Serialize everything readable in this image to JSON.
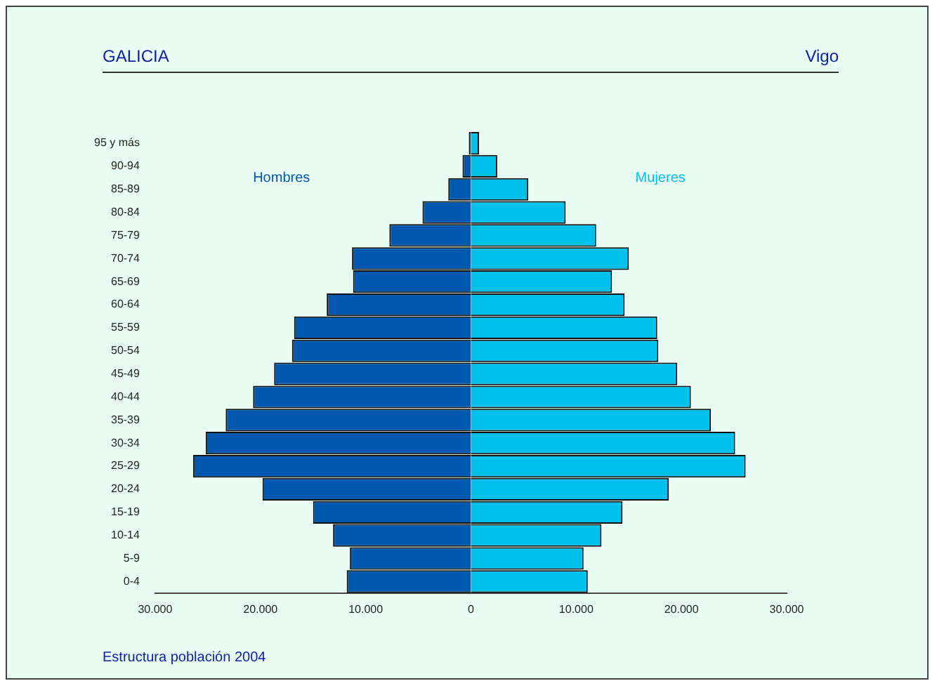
{
  "chart_data": {
    "type": "bar",
    "orientation": "horizontal",
    "stacked": true,
    "title": "GALICIA",
    "subtitle": "Vigo",
    "annotations": [
      "Estructura población 2004"
    ],
    "categories": [
      "95 y más",
      "90-94",
      "85-89",
      "80-84",
      "75-79",
      "70-74",
      "65-69",
      "60-64",
      "55-59",
      "50-54",
      "45-49",
      "40-44",
      "35-39",
      "30-34",
      "25-29",
      "20-24",
      "15-19",
      "10-14",
      "5-9",
      "0-4"
    ],
    "series": [
      {
        "name": "Hombres",
        "color": "#0058b0",
        "values": [
          -200,
          -800,
          -2150,
          -4600,
          -7750,
          -11300,
          -11200,
          -13700,
          -16800,
          -17000,
          -18700,
          -20700,
          -23300,
          -25200,
          -26400,
          -19800,
          -15000,
          -13100,
          -11500,
          -11800
        ]
      },
      {
        "name": "Mujeres",
        "color": "#00c0ec",
        "values": [
          770,
          2500,
          5450,
          9000,
          11900,
          15000,
          13400,
          14600,
          17700,
          17800,
          19600,
          20900,
          22800,
          25100,
          26100,
          18800,
          14400,
          12400,
          10700,
          11100
        ]
      }
    ],
    "xlim": [
      -30000,
      30000
    ],
    "xticks": [
      {
        "value": -30000,
        "label": "30.000"
      },
      {
        "value": -20000,
        "label": "20.000"
      },
      {
        "value": -10000,
        "label": "10.000"
      },
      0,
      {
        "value": 10000,
        "label": "10.000"
      },
      {
        "value": 20000,
        "label": "20.000"
      },
      {
        "value": 30000,
        "label": "30.000"
      }
    ],
    "grid": false,
    "legend": false
  }
}
